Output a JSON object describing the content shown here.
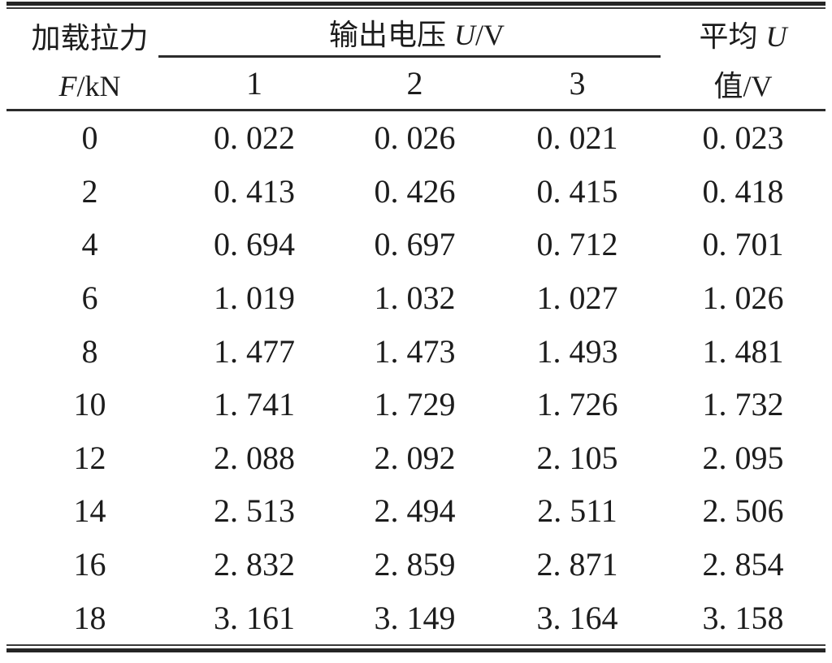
{
  "table": {
    "header": {
      "force": {
        "line1": "加载拉力",
        "symbol": "F",
        "unit": "/kN"
      },
      "voltage": {
        "label": "输出电压",
        "symbol": "U",
        "unit": "/V"
      },
      "trials": [
        "1",
        "2",
        "3"
      ],
      "average": {
        "line1_label": "平均",
        "symbol": "U",
        "line2": "值/V"
      }
    },
    "rows": [
      [
        "0",
        "0. 022",
        "0. 026",
        "0. 021",
        "0. 023"
      ],
      [
        "2",
        "0. 413",
        "0. 426",
        "0. 415",
        "0. 418"
      ],
      [
        "4",
        "0. 694",
        "0. 697",
        "0. 712",
        "0. 701"
      ],
      [
        "6",
        "1. 019",
        "1. 032",
        "1. 027",
        "1. 026"
      ],
      [
        "8",
        "1. 477",
        "1. 473",
        "1. 493",
        "1. 481"
      ],
      [
        "10",
        "1. 741",
        "1. 729",
        "1. 726",
        "1. 732"
      ],
      [
        "12",
        "2. 088",
        "2. 092",
        "2. 105",
        "2. 095"
      ],
      [
        "14",
        "2. 513",
        "2. 494",
        "2. 511",
        "2. 506"
      ],
      [
        "16",
        "2. 832",
        "2. 859",
        "2. 871",
        "2. 854"
      ],
      [
        "18",
        "3. 161",
        "3. 149",
        "3. 164",
        "3. 158"
      ]
    ],
    "colors": {
      "text": "#1c1c1c",
      "rule": "#2b2b2b",
      "background": "#ffffff"
    }
  }
}
